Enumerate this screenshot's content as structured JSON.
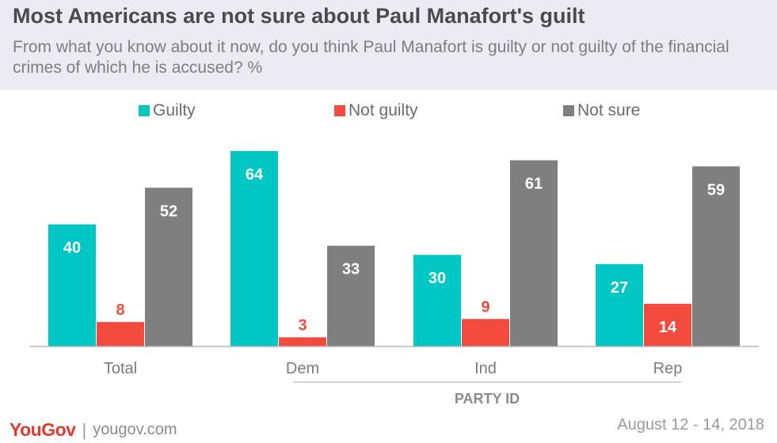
{
  "chart_data": {
    "type": "bar",
    "title": "Most Americans are not sure about Paul Manafort's guilt",
    "subtitle": "From what you know about it now, do you think Paul Manafort is guilty or not guilty of the financial crimes of which he is accused? %",
    "categories": [
      "Total",
      "Dem",
      "Ind",
      "Rep"
    ],
    "series": [
      {
        "name": "Guilty",
        "color": "#00c7c4",
        "values": [
          40,
          64,
          30,
          27
        ]
      },
      {
        "name": "Not guilty",
        "color": "#f24a3d",
        "values": [
          8,
          3,
          9,
          14
        ]
      },
      {
        "name": "Not sure",
        "color": "#7f7f7f",
        "values": [
          52,
          33,
          61,
          59
        ]
      }
    ],
    "group_label": "PARTY ID",
    "ylim": [
      0,
      65
    ],
    "legend_position": "top",
    "grid": false
  },
  "footer": {
    "logo": "YouGov",
    "url": "yougov.com",
    "date": "August 12 - 14, 2018"
  }
}
